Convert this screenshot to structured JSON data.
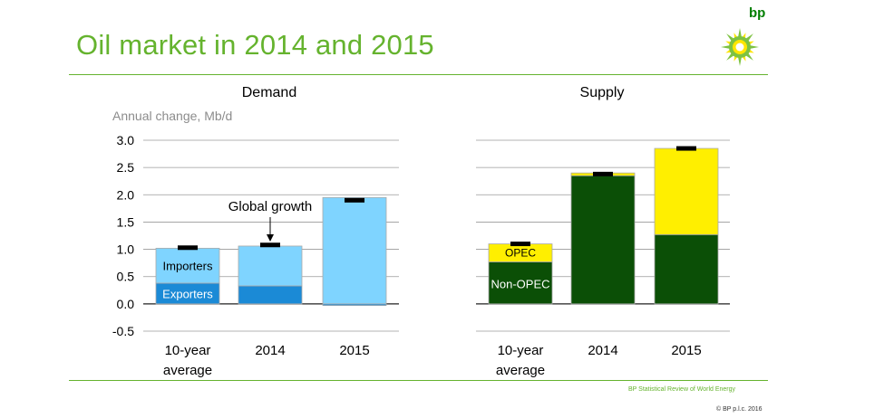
{
  "slide": {
    "title": "Oil market in 2014 and 2015",
    "logo_text": "bp",
    "footer_source": "BP Statistical Review of World Energy",
    "footer_copyright": "© BP p.l.c. 2016"
  },
  "colors": {
    "brand_green": "#65b32e",
    "importers": "#7fd4ff",
    "exporters": "#1b8ad6",
    "opec": "#ffef00",
    "non_opec": "#0b4f06",
    "marker": "#000000"
  },
  "chart_data": [
    {
      "type": "bar",
      "stacked": true,
      "title": "Demand",
      "ylabel": "Annual change, Mb/d",
      "ylim": [
        -0.5,
        3.0
      ],
      "yticks": [
        "3.0",
        "2.5",
        "2.0",
        "1.5",
        "1.0",
        "0.5",
        "0.0",
        "-0.5"
      ],
      "categories": [
        [
          "10-year",
          "average"
        ],
        [
          "2014"
        ],
        [
          "2015"
        ]
      ],
      "series": [
        {
          "name": "Exporters",
          "values": [
            0.38,
            0.33,
            -0.03
          ]
        },
        {
          "name": "Importers",
          "values": [
            0.64,
            0.73,
            1.95
          ]
        }
      ],
      "total_marker": [
        1.03,
        1.08,
        1.9
      ],
      "annotation": {
        "text": "Global growth",
        "category": 1
      }
    },
    {
      "type": "bar",
      "stacked": true,
      "title": "Supply",
      "categories": [
        [
          "10-year",
          "average"
        ],
        [
          "2014"
        ],
        [
          "2015"
        ]
      ],
      "series": [
        {
          "name": "Non-OPEC",
          "values": [
            0.77,
            2.35,
            1.27
          ]
        },
        {
          "name": "OPEC",
          "values": [
            0.33,
            0.05,
            1.58
          ]
        }
      ],
      "total_marker": [
        1.1,
        2.38,
        2.85
      ]
    }
  ]
}
